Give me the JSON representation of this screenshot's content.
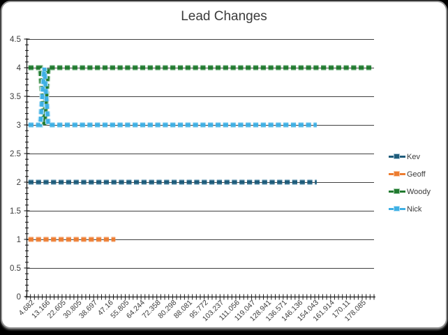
{
  "title": "Lead Changes",
  "frame": {
    "background": "#000000",
    "chart_background": "#ffffff",
    "border_color": "#8f8f8f"
  },
  "colors": {
    "gridline": "#3f3f3f",
    "axis": "#1a1a1a",
    "tick_text": "#3b3b3b",
    "title_text": "#3b3b3b"
  },
  "chart_data": {
    "type": "line",
    "title": "Lead Changes",
    "xlabel": "",
    "ylabel": "",
    "grid": true,
    "legend_position": "right",
    "y_axis": {
      "min": 0,
      "max": 4.5,
      "major_step": 0.5,
      "minor_step": 0.1,
      "tick_labels": [
        "4.5",
        "4",
        "3.5",
        "3",
        "2.5",
        "2",
        "1.5",
        "1",
        "0.5",
        "0"
      ]
    },
    "x_axis": {
      "n_categories": 88,
      "label_interval": 4,
      "label_start_index": 1,
      "tick_labels": [
        "4.682",
        "13.166",
        "22.605",
        "30.805",
        "38.697",
        "47.16",
        "55.805",
        "64.244",
        "72.358",
        "80.298",
        "88.081",
        "95.772",
        "103.237",
        "111.056",
        "119.047",
        "128.941",
        "136.571",
        "146.136",
        "154.043",
        "161.914",
        "170.11",
        "178.085"
      ]
    },
    "series": [
      {
        "name": "Kev",
        "color": "#1F5C7B",
        "tint": "#A7C6D6",
        "value": 2,
        "start_index": 0,
        "end_index": 73,
        "exceptions": {}
      },
      {
        "name": "Geoff",
        "color": "#ED7D31",
        "tint": "#F8C9A8",
        "value": 1,
        "start_index": 0,
        "end_index": 22,
        "exceptions": {}
      },
      {
        "name": "Woody",
        "color": "#217A2F",
        "tint": "#A3CEAC",
        "value": 4,
        "start_index": 0,
        "end_index": 87,
        "exceptions": {
          "4": 3
        }
      },
      {
        "name": "Nick",
        "color": "#3FB0E4",
        "tint": "#B3E1F6",
        "value": 3,
        "start_index": 0,
        "end_index": 73,
        "exceptions": {
          "4": 4
        }
      }
    ]
  }
}
